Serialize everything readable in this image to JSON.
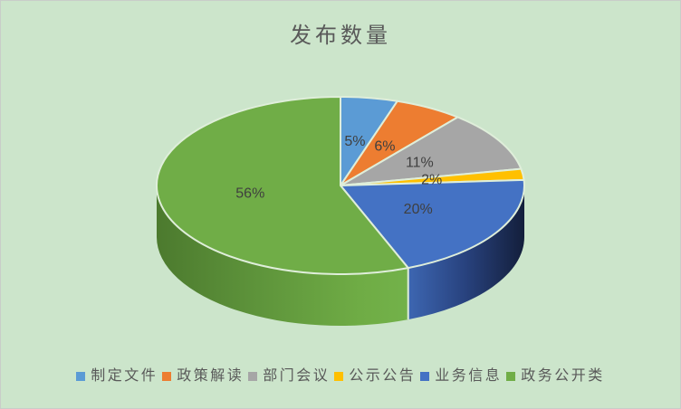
{
  "title": "发布数量",
  "chart_data": {
    "type": "pie",
    "style": "3d",
    "title": "发布数量",
    "start_angle_deg": 0,
    "direction": "clockwise",
    "legend_position": "bottom",
    "background_color": "#CCE5CB",
    "slice_border_color": "#DFEEDA",
    "label_color": "#3F3F3F",
    "legend_text_color": "#595959",
    "title_color": "#595959",
    "categories": [
      "制定文件",
      "政策解读",
      "部门会议",
      "公示公告",
      "业务信息",
      "政务公开类"
    ],
    "values": [
      5,
      6,
      11,
      2,
      20,
      56
    ],
    "labels": [
      "5%",
      "6%",
      "11%",
      "2%",
      "20%",
      "56%"
    ],
    "colors": [
      "#5B9BD5",
      "#ED7D31",
      "#A6A6A6",
      "#FFC000",
      "#4472C4",
      "#70AD47"
    ]
  }
}
